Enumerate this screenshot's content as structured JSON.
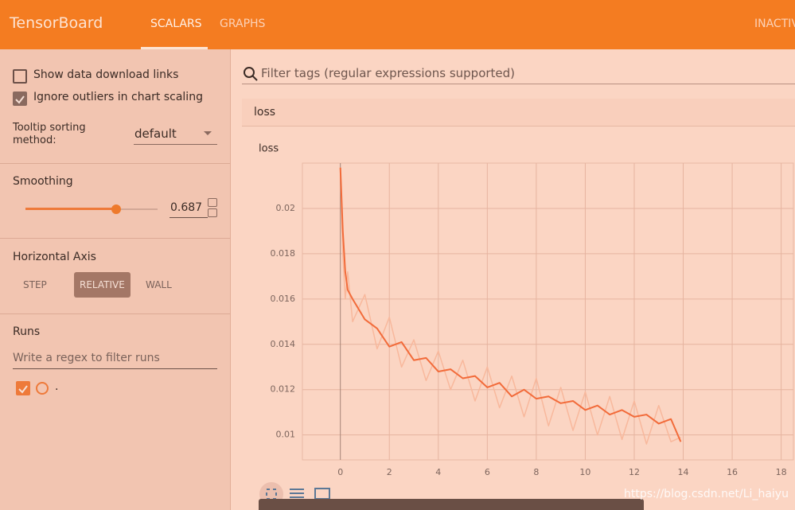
{
  "header": {
    "title": "TensorBoard",
    "tabs": [
      {
        "label": "SCALARS",
        "active": true
      },
      {
        "label": "GRAPHS",
        "active": false
      },
      {
        "label": "INACTIV",
        "active": false
      }
    ]
  },
  "sidebar": {
    "checkboxes": [
      {
        "label": "Show data download links",
        "checked": false
      },
      {
        "label": "Ignore outliers in chart scaling",
        "checked": true
      }
    ],
    "tooltip_label": "Tooltip sorting method:",
    "tooltip_value": "default",
    "smoothing_label": "Smoothing",
    "smoothing_value": 0.687,
    "horizontal_axis_label": "Horizontal Axis",
    "axis_options": [
      {
        "label": "STEP",
        "active": false
      },
      {
        "label": "RELATIVE",
        "active": true
      },
      {
        "label": "WALL",
        "active": false
      }
    ],
    "runs_label": "Runs",
    "runs_filter_placeholder": "Write a regex to filter runs",
    "run": {
      "name": ".",
      "checked": true
    }
  },
  "filter_placeholder": "Filter tags (regular expressions supported)",
  "card_title": "loss",
  "chart_data": {
    "type": "line",
    "title": "loss",
    "x": [
      0,
      0.1,
      0.2,
      0.3,
      0.5,
      1,
      1.5,
      2,
      2.5,
      3,
      3.5,
      4,
      4.5,
      5,
      5.5,
      6,
      6.5,
      7,
      7.5,
      8,
      8.5,
      9,
      9.5,
      10,
      10.5,
      11,
      11.5,
      12,
      12.5,
      13,
      13.5,
      13.9
    ],
    "series": [
      {
        "color": "#f8b89c",
        "values": [
          0.0218,
          0.018,
          0.016,
          0.0172,
          0.015,
          0.0162,
          0.0138,
          0.0152,
          0.013,
          0.0142,
          0.0124,
          0.0137,
          0.012,
          0.0133,
          0.0115,
          0.013,
          0.0112,
          0.0126,
          0.0108,
          0.0125,
          0.0104,
          0.0121,
          0.0102,
          0.0119,
          0.01,
          0.0117,
          0.0098,
          0.0115,
          0.0096,
          0.0113,
          0.0097,
          0.0099
        ]
      },
      {
        "color": "#f26b3a",
        "values": [
          0.0218,
          0.019,
          0.0172,
          0.0164,
          0.016,
          0.0151,
          0.0147,
          0.0139,
          0.0141,
          0.0133,
          0.0134,
          0.0128,
          0.0129,
          0.0125,
          0.0126,
          0.0121,
          0.0123,
          0.0117,
          0.012,
          0.0116,
          0.0117,
          0.0114,
          0.0115,
          0.0111,
          0.0113,
          0.0109,
          0.0111,
          0.0108,
          0.0109,
          0.0105,
          0.0107,
          0.0097
        ]
      }
    ],
    "xlim": [
      -1.55,
      18.5
    ],
    "ylim": [
      0.0089,
      0.022
    ],
    "xticks": [
      0,
      2,
      4,
      6,
      8,
      10,
      12,
      14,
      16,
      18
    ],
    "yticks": [
      0.01,
      0.012,
      0.014,
      0.016,
      0.018,
      0.02
    ],
    "grid": true
  },
  "watermark": "https://blog.csdn.net/Li_haiyu"
}
